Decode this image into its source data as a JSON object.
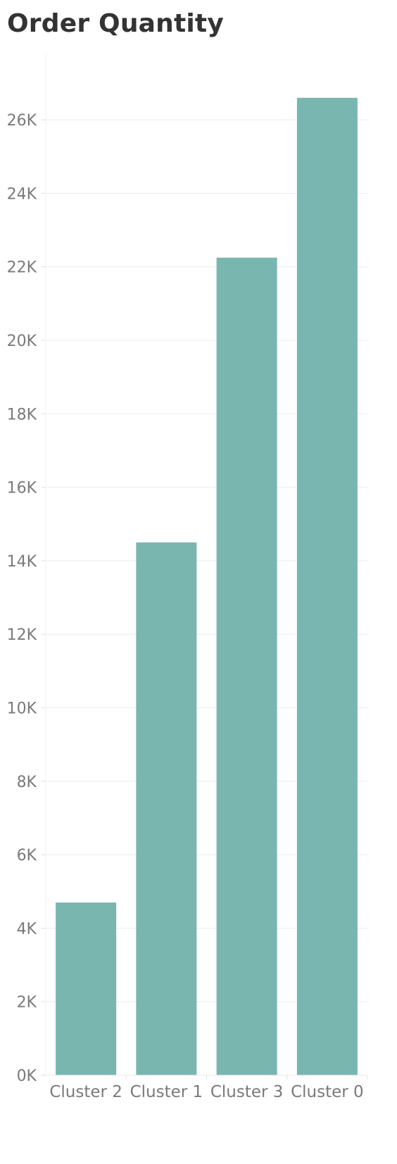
{
  "chart_data": {
    "type": "bar",
    "title": "Order Quantity",
    "xlabel": "",
    "ylabel": "",
    "categories": [
      "Cluster 2",
      "Cluster 1",
      "Cluster 3",
      "Cluster 0"
    ],
    "values": [
      4700,
      14500,
      22250,
      26600
    ],
    "ylim": [
      0,
      27500
    ],
    "yticks": [
      0,
      2000,
      4000,
      6000,
      8000,
      10000,
      12000,
      14000,
      16000,
      18000,
      20000,
      22000,
      24000,
      26000
    ],
    "ytick_labels": [
      "0K",
      "2K",
      "4K",
      "6K",
      "8K",
      "10K",
      "12K",
      "14K",
      "16K",
      "18K",
      "20K",
      "22K",
      "24K",
      "26K"
    ],
    "grid": true,
    "legend": "none",
    "bar_color": "#79b6b0"
  }
}
